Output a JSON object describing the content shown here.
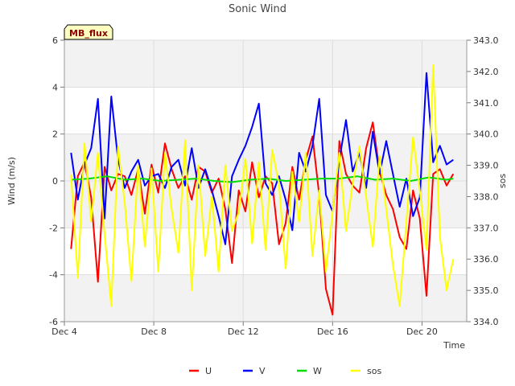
{
  "chart_data": {
    "type": "line",
    "title": "Sonic Wind",
    "site_label": "MB_flux",
    "xlabel": "Time",
    "ylabel": "Wind (m/s)",
    "y2label": "sos",
    "x_ticks": [
      {
        "day": 4,
        "label": "Dec 4"
      },
      {
        "day": 8,
        "label": "Dec 8"
      },
      {
        "day": 12,
        "label": "Dec 12"
      },
      {
        "day": 16,
        "label": "Dec 16"
      },
      {
        "day": 20,
        "label": "Dec 20"
      }
    ],
    "xlim": [
      4,
      22
    ],
    "ylim": [
      -6,
      6
    ],
    "y_ticks": [
      -6,
      -4,
      -2,
      0,
      2,
      4,
      6
    ],
    "y2lim": [
      334.0,
      343.0
    ],
    "y2_ticks": [
      "334.0",
      "335.0",
      "336.0",
      "337.0",
      "338.0",
      "339.0",
      "340.0",
      "341.0",
      "342.0",
      "343.0"
    ],
    "legend_position": "bottom-center",
    "series": [
      {
        "name": "U",
        "axis": "left",
        "color": "#ff0000",
        "x": [
          4.3,
          4.6,
          4.9,
          5.2,
          5.5,
          5.8,
          6.1,
          6.4,
          6.7,
          7.0,
          7.3,
          7.6,
          7.9,
          8.2,
          8.5,
          8.8,
          9.1,
          9.4,
          9.7,
          10.0,
          10.3,
          10.6,
          10.9,
          11.2,
          11.5,
          11.8,
          12.1,
          12.4,
          12.7,
          13.0,
          13.3,
          13.6,
          13.9,
          14.2,
          14.5,
          14.8,
          15.1,
          15.4,
          15.7,
          16.0,
          16.3,
          16.6,
          16.9,
          17.2,
          17.5,
          17.8,
          18.1,
          18.4,
          18.7,
          19.0,
          19.3,
          19.6,
          19.9,
          20.2,
          20.5,
          20.8,
          21.1,
          21.4
        ],
        "y": [
          -2.9,
          0.2,
          0.8,
          -0.7,
          -4.3,
          0.6,
          -0.4,
          0.3,
          0.2,
          -0.6,
          0.5,
          -1.4,
          0.7,
          -0.5,
          1.6,
          0.5,
          -0.3,
          0.2,
          -0.8,
          0.6,
          0.4,
          -0.5,
          0.1,
          -1.2,
          -3.5,
          -0.4,
          -1.3,
          0.8,
          -0.7,
          0.2,
          -0.1,
          -2.7,
          -1.8,
          0.6,
          -0.8,
          0.9,
          1.9,
          -0.6,
          -4.6,
          -5.7,
          1.7,
          0.3,
          -0.2,
          -0.5,
          1.4,
          2.5,
          0.4,
          -0.6,
          -1.2,
          -2.4,
          -2.9,
          -0.4,
          -1.6,
          -4.9,
          0.3,
          0.5,
          -0.2,
          0.3
        ]
      },
      {
        "name": "V",
        "axis": "left",
        "color": "#0000ff",
        "x": [
          4.3,
          4.6,
          4.9,
          5.2,
          5.5,
          5.8,
          6.1,
          6.4,
          6.7,
          7.0,
          7.3,
          7.6,
          7.9,
          8.2,
          8.5,
          8.8,
          9.1,
          9.4,
          9.7,
          10.0,
          10.3,
          10.6,
          10.9,
          11.2,
          11.5,
          11.8,
          12.1,
          12.4,
          12.7,
          13.0,
          13.3,
          13.6,
          13.9,
          14.2,
          14.5,
          14.8,
          15.1,
          15.4,
          15.7,
          16.0,
          16.3,
          16.6,
          16.9,
          17.2,
          17.5,
          17.8,
          18.1,
          18.4,
          18.7,
          19.0,
          19.3,
          19.6,
          19.9,
          20.2,
          20.5,
          20.8,
          21.1,
          21.4
        ],
        "y": [
          1.2,
          -0.8,
          0.7,
          1.4,
          3.5,
          -1.6,
          3.6,
          0.9,
          -0.3,
          0.4,
          0.9,
          -0.2,
          0.2,
          0.3,
          -0.3,
          0.6,
          0.9,
          -0.2,
          1.4,
          -0.3,
          0.5,
          -0.4,
          -1.5,
          -2.7,
          0.2,
          0.9,
          1.5,
          2.3,
          3.3,
          -0.1,
          -0.6,
          0.2,
          -0.8,
          -2.1,
          1.2,
          0.4,
          1.5,
          3.5,
          -0.6,
          -1.3,
          0.9,
          2.6,
          0.4,
          1.2,
          -0.3,
          2.1,
          0.3,
          1.7,
          0.3,
          -1.1,
          0.1,
          -1.5,
          -0.7,
          4.6,
          0.8,
          1.5,
          0.7,
          0.9
        ]
      },
      {
        "name": "W",
        "axis": "left",
        "color": "#00dd00",
        "x": [
          4.3,
          5.1,
          5.9,
          6.7,
          7.5,
          8.3,
          9.1,
          9.9,
          10.7,
          11.5,
          12.3,
          13.1,
          13.9,
          14.7,
          15.5,
          16.3,
          17.1,
          17.9,
          18.7,
          19.5,
          20.3,
          21.1,
          21.4
        ],
        "y": [
          0.05,
          0.1,
          0.2,
          0.05,
          0.1,
          0.0,
          0.05,
          0.1,
          0.0,
          -0.05,
          0.05,
          0.1,
          0.0,
          0.05,
          0.1,
          0.1,
          0.2,
          0.05,
          0.1,
          0.0,
          0.15,
          0.05,
          0.1
        ]
      },
      {
        "name": "sos",
        "axis": "right",
        "color": "#ffff00",
        "x": [
          4.3,
          4.6,
          4.9,
          5.2,
          5.5,
          5.8,
          6.1,
          6.4,
          6.7,
          7.0,
          7.3,
          7.6,
          7.9,
          8.2,
          8.5,
          8.8,
          9.1,
          9.4,
          9.7,
          10.0,
          10.3,
          10.6,
          10.9,
          11.2,
          11.5,
          11.8,
          12.1,
          12.4,
          12.7,
          13.0,
          13.3,
          13.6,
          13.9,
          14.2,
          14.5,
          14.8,
          15.1,
          15.4,
          15.7,
          16.0,
          16.3,
          16.6,
          16.9,
          17.2,
          17.5,
          17.8,
          18.1,
          18.4,
          18.7,
          19.0,
          19.3,
          19.6,
          19.9,
          20.2,
          20.5,
          20.8,
          21.1,
          21.4
        ],
        "y": [
          338.7,
          335.4,
          339.7,
          337.2,
          339.4,
          336.8,
          334.5,
          339.6,
          337.8,
          335.3,
          339.0,
          336.4,
          338.9,
          335.6,
          339.4,
          337.6,
          336.2,
          339.8,
          335.0,
          339.0,
          336.1,
          338.0,
          335.6,
          339.0,
          336.9,
          337.5,
          339.2,
          336.5,
          339.1,
          336.3,
          339.5,
          338.4,
          335.7,
          338.8,
          337.2,
          339.4,
          336.1,
          338.2,
          335.6,
          337.5,
          339.4,
          336.9,
          338.4,
          339.6,
          338.0,
          336.4,
          339.3,
          337.6,
          335.8,
          334.5,
          337.2,
          339.9,
          338.2,
          336.3,
          342.2,
          336.7,
          335.0,
          336.0
        ]
      }
    ]
  }
}
